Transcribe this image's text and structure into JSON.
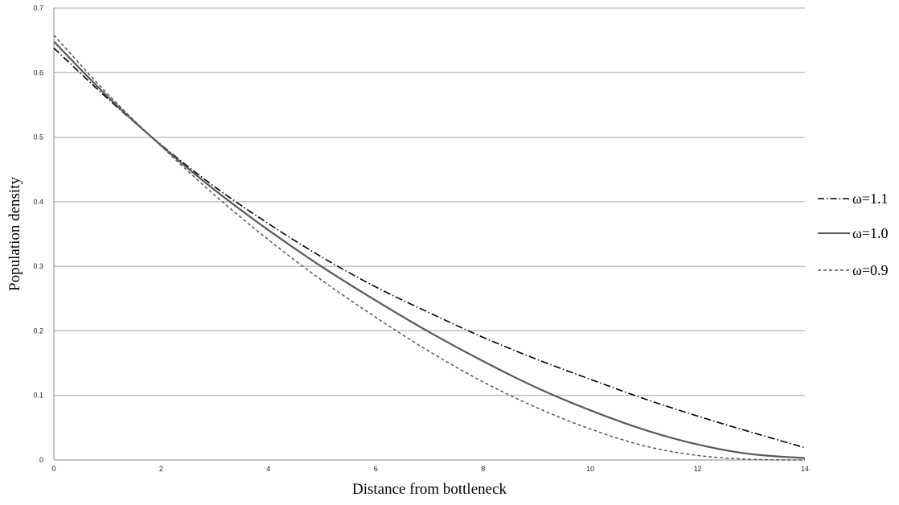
{
  "chart_data": {
    "type": "line",
    "xlabel": "Distance from bottleneck",
    "ylabel": "Population density",
    "xlim": [
      0,
      14
    ],
    "ylim": [
      0,
      0.7
    ],
    "x_ticks": [
      "0",
      "2",
      "4",
      "6",
      "8",
      "10",
      "12",
      "14"
    ],
    "y_ticks": [
      "0",
      "0.1",
      "0.2",
      "0.3",
      "0.4",
      "0.5",
      "0.6",
      "0.7"
    ],
    "grid": "horizontal",
    "legend_position": "right",
    "x": [
      0,
      1,
      2,
      3,
      4,
      5,
      6,
      7,
      8,
      9,
      10,
      11,
      12,
      13,
      14
    ],
    "series": [
      {
        "name": "ω=1.1",
        "style": "dash-dot",
        "color": "#000000",
        "values": [
          0.638,
          0.56,
          0.488,
          0.423,
          0.366,
          0.314,
          0.268,
          0.228,
          0.19,
          0.156,
          0.125,
          0.095,
          0.068,
          0.043,
          0.019
        ]
      },
      {
        "name": "ω=1.0",
        "style": "solid",
        "color": "#595959",
        "values": [
          0.648,
          0.563,
          0.487,
          0.418,
          0.356,
          0.299,
          0.247,
          0.198,
          0.153,
          0.112,
          0.077,
          0.047,
          0.024,
          0.009,
          0.003
        ]
      },
      {
        "name": "ω=0.9",
        "style": "dashed",
        "color": "#595959",
        "values": [
          0.658,
          0.567,
          0.486,
          0.41,
          0.341,
          0.278,
          0.221,
          0.168,
          0.121,
          0.081,
          0.048,
          0.022,
          0.007,
          0.001,
          0.0
        ]
      }
    ]
  }
}
